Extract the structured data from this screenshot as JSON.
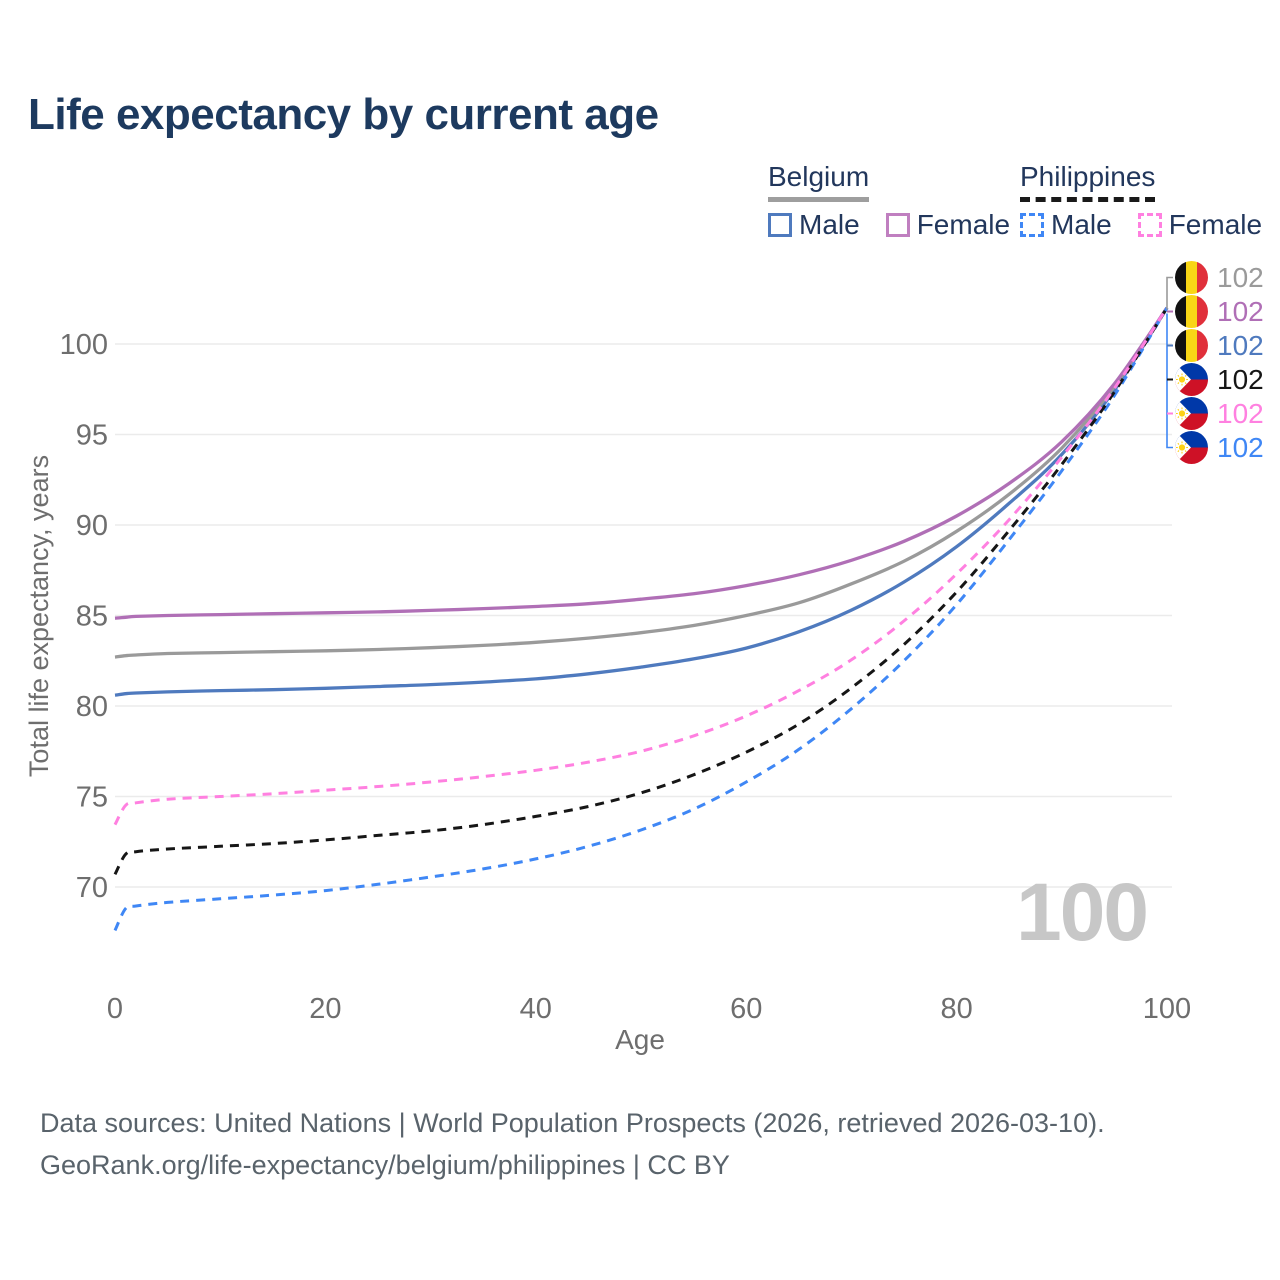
{
  "title": "Life expectancy by current age",
  "legend": {
    "groups": [
      {
        "label": "Belgium",
        "line_style": "solid",
        "underline_color": "#9e9e9e",
        "items": [
          {
            "label": "Male",
            "color": "#4f7abe",
            "dashed": false
          },
          {
            "label": "Female",
            "color": "#c07fc0",
            "dashed": false
          }
        ]
      },
      {
        "label": "Philippines",
        "line_style": "dashed",
        "underline_color": "#1a1a1a",
        "items": [
          {
            "label": "Male",
            "color": "#3f87f5",
            "dashed": true
          },
          {
            "label": "Female",
            "color": "#ff80e0",
            "dashed": true
          }
        ]
      }
    ]
  },
  "chart_data": {
    "type": "line",
    "title": "Life expectancy by current age",
    "xlabel": "Age",
    "ylabel": "Total life expectancy, years",
    "x_ticks": [
      0,
      20,
      40,
      60,
      80,
      100
    ],
    "y_ticks": [
      70,
      75,
      80,
      85,
      90,
      95,
      100
    ],
    "xlim": [
      0,
      100
    ],
    "ylim": [
      66.5,
      102.5
    ],
    "grid": "horizontal-only",
    "legend_position": "top-right",
    "watermark_age_counter": "100",
    "ages": [
      0,
      1,
      2,
      5,
      10,
      15,
      20,
      25,
      30,
      35,
      40,
      45,
      50,
      55,
      60,
      65,
      70,
      75,
      80,
      85,
      90,
      95,
      100
    ],
    "series": [
      {
        "name": "Belgium",
        "country": "belgium",
        "sex": "both",
        "color": "#9a9a9a",
        "dashed": false,
        "end_label": "102",
        "values": [
          82.7,
          82.78,
          82.82,
          82.9,
          82.95,
          83.0,
          83.05,
          83.12,
          83.22,
          83.35,
          83.52,
          83.75,
          84.05,
          84.45,
          85.0,
          85.7,
          86.75,
          88.0,
          89.65,
          91.7,
          94.25,
          97.65,
          102
        ]
      },
      {
        "name": "Belgium Female",
        "country": "belgium",
        "sex": "female",
        "color": "#b06fb6",
        "dashed": false,
        "end_label": "102",
        "values": [
          84.85,
          84.9,
          84.95,
          85.0,
          85.05,
          85.1,
          85.15,
          85.2,
          85.28,
          85.38,
          85.5,
          85.65,
          85.9,
          86.2,
          86.65,
          87.25,
          88.05,
          89.1,
          90.5,
          92.3,
          94.6,
          97.8,
          102
        ]
      },
      {
        "name": "Belgium Male",
        "country": "belgium",
        "sex": "male",
        "color": "#4f7abe",
        "dashed": false,
        "end_label": "102",
        "values": [
          80.6,
          80.68,
          80.72,
          80.78,
          80.85,
          80.9,
          80.98,
          81.08,
          81.18,
          81.32,
          81.5,
          81.78,
          82.15,
          82.6,
          83.2,
          84.1,
          85.3,
          86.85,
          88.8,
          91.2,
          93.9,
          97.45,
          102
        ]
      },
      {
        "name": "Philippines",
        "country": "philippines",
        "sex": "both",
        "color": "#161616",
        "dashed": true,
        "end_label": "102",
        "values": [
          70.7,
          71.8,
          71.95,
          72.1,
          72.25,
          72.4,
          72.6,
          72.85,
          73.1,
          73.45,
          73.9,
          74.45,
          75.2,
          76.2,
          77.45,
          79.0,
          81.0,
          83.4,
          86.3,
          89.7,
          93.35,
          97.35,
          102
        ]
      },
      {
        "name": "Philippines Female",
        "country": "philippines",
        "sex": "female",
        "color": "#ff80e0",
        "dashed": true,
        "end_label": "102",
        "values": [
          73.45,
          74.5,
          74.65,
          74.85,
          75.0,
          75.15,
          75.35,
          75.55,
          75.8,
          76.1,
          76.45,
          76.9,
          77.5,
          78.35,
          79.45,
          80.85,
          82.55,
          84.7,
          87.3,
          90.3,
          93.75,
          97.55,
          102
        ]
      },
      {
        "name": "Philippines Male",
        "country": "philippines",
        "sex": "male",
        "color": "#3f87f5",
        "dashed": true,
        "end_label": "102",
        "values": [
          67.6,
          68.8,
          68.95,
          69.15,
          69.35,
          69.55,
          69.8,
          70.15,
          70.55,
          71.0,
          71.55,
          72.25,
          73.15,
          74.3,
          75.8,
          77.6,
          79.85,
          82.5,
          85.6,
          89.2,
          93.0,
          97.15,
          102
        ]
      }
    ],
    "end_label_order_top_to_bottom": [
      "Belgium",
      "Belgium Female",
      "Belgium Male",
      "Philippines",
      "Philippines Female",
      "Philippines Male"
    ]
  },
  "footer": {
    "line1": "Data sources: United Nations | World Population Prospects (2026, retrieved 2026-03-10).",
    "line2": "GeoRank.org/life-expectancy/belgium/philippines | CC BY"
  }
}
